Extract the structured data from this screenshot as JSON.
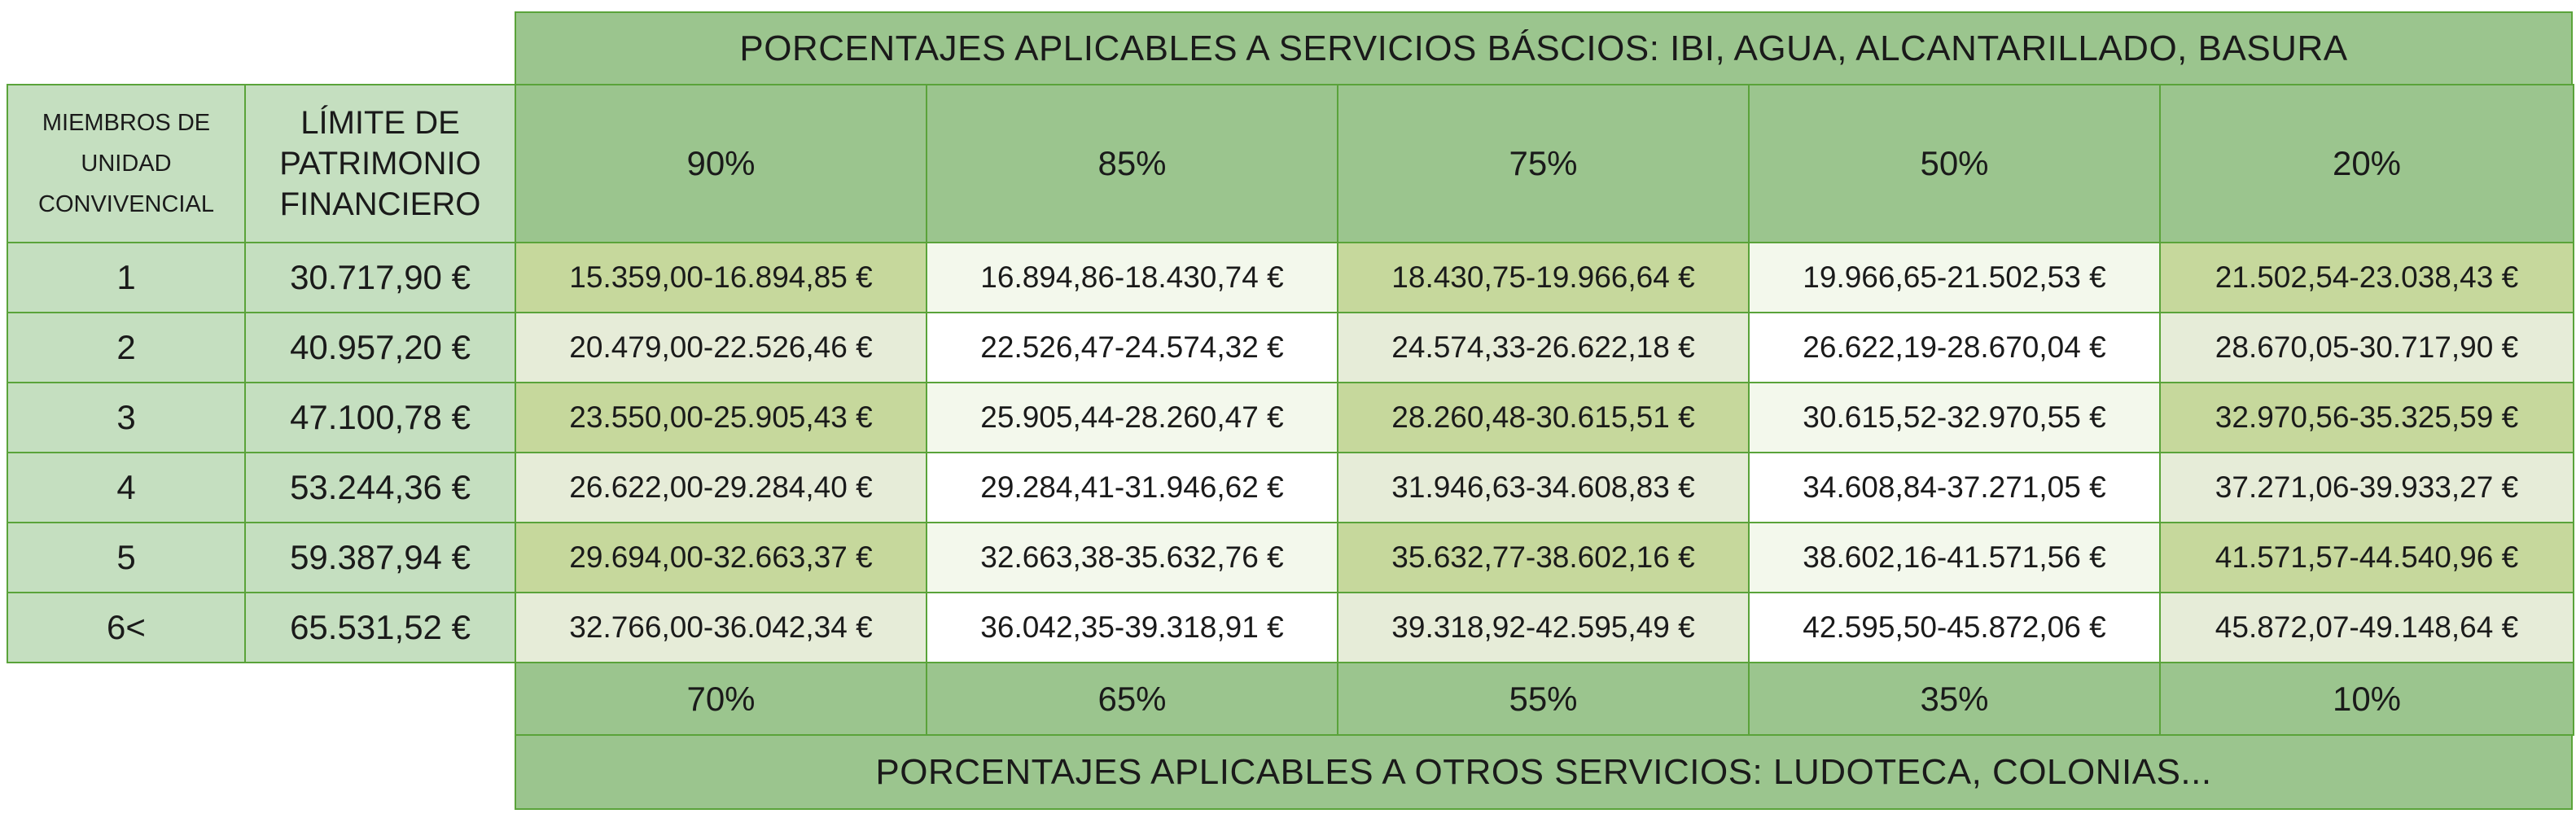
{
  "top_title": "PORCENTAJES APLICABLES A SERVICIOS BÁSCIOS: IBI, AGUA, ALCANTARILLADO, BASURA",
  "bottom_title": "PORCENTAJES APLICABLES A OTROS SERVICIOS: LUDOTECA, COLONIAS...",
  "headers": {
    "members": "MIEMBROS DE UNIDAD CONVIVENCIAL",
    "limit": "LÍMITE DE PATRIMONIO FINANCIERO"
  },
  "top_percentages": [
    "90%",
    "85%",
    "75%",
    "50%",
    "20%"
  ],
  "bottom_percentages": [
    "70%",
    "65%",
    "55%",
    "35%",
    "10%"
  ],
  "rows": [
    {
      "members": "1",
      "limit": "30.717,90 €",
      "ranges": [
        "15.359,00-16.894,85 €",
        "16.894,86-18.430,74 €",
        "18.430,75-19.966,64 €",
        "19.966,65-21.502,53 €",
        "21.502,54-23.038,43 €"
      ]
    },
    {
      "members": "2",
      "limit": "40.957,20 €",
      "ranges": [
        "20.479,00-22.526,46 €",
        "22.526,47-24.574,32 €",
        "24.574,33-26.622,18 €",
        "26.622,19-28.670,04 €",
        "28.670,05-30.717,90 €"
      ]
    },
    {
      "members": "3",
      "limit": "47.100,78 €",
      "ranges": [
        "23.550,00-25.905,43 €",
        "25.905,44-28.260,47 €",
        "28.260,48-30.615,51 €",
        "30.615,52-32.970,55 €",
        "32.970,56-35.325,59 €"
      ]
    },
    {
      "members": "4",
      "limit": "53.244,36 €",
      "ranges": [
        "26.622,00-29.284,40 €",
        "29.284,41-31.946,62 €",
        "31.946,63-34.608,83 €",
        "34.608,84-37.271,05 €",
        "37.271,06-39.933,27 €"
      ]
    },
    {
      "members": "5",
      "limit": "59.387,94 €",
      "ranges": [
        "29.694,00-32.663,37 €",
        "32.663,38-35.632,76 €",
        "35.632,77-38.602,16 €",
        "38.602,16-41.571,56 €",
        "41.571,57-44.540,96 €"
      ]
    },
    {
      "members": "6<",
      "limit": "65.531,52 €",
      "ranges": [
        "32.766,00-36.042,34 €",
        "36.042,35-39.318,91 €",
        "39.318,92-42.595,49 €",
        "42.595,50-45.872,06 €",
        "45.872,07-49.148,64 €"
      ]
    }
  ],
  "colors": {
    "border": "#5aa33a",
    "header": "#9bc58e",
    "left_column": "#c5dfc0",
    "shade_strong": "#c6d89c",
    "shade_light": "#e6ecd8"
  }
}
